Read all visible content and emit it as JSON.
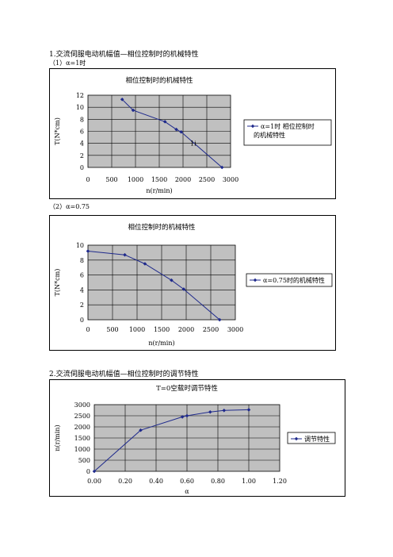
{
  "headings": {
    "section1": "1.交流伺服电动机幅值—相位控制时的机械特性",
    "sub1": "（1）α=1时",
    "sub2": "（2）α=0.75",
    "section2": "2.交流伺服电动机幅值—相位控制时的调节特性"
  },
  "chart_data": [
    {
      "type": "line",
      "title": "相位控制时的机械特性",
      "xlabel": "n(r/min)",
      "ylabel": "T(N*cm)",
      "xticks": [
        "0",
        "500",
        "1000",
        "1500",
        "2000",
        "2500",
        "3000"
      ],
      "yticks": [
        "0",
        "2",
        "4",
        "6",
        "8",
        "10",
        "12"
      ],
      "xlim": [
        0,
        3000
      ],
      "ylim": [
        0,
        12
      ],
      "grid": true,
      "legend_position": "right",
      "color": "#1f2a8c",
      "plot_bg": "#c0c0c0",
      "annotation": "1i",
      "series": [
        {
          "name": "α=1时  相位控制时的机械特性",
          "x": [
            720,
            950,
            1620,
            1860,
            1960,
            2820
          ],
          "y": [
            11.3,
            9.5,
            7.6,
            6.3,
            5.9,
            0
          ]
        }
      ]
    },
    {
      "type": "line",
      "title": "相位控制时的机械特性",
      "xlabel": "n(r/min)",
      "ylabel": "T(N*cm)",
      "xticks": [
        "0",
        "500",
        "1000",
        "1500",
        "2000",
        "2500",
        "3000"
      ],
      "yticks": [
        "0",
        "2",
        "4",
        "6",
        "8",
        "10"
      ],
      "xlim": [
        0,
        3000
      ],
      "ylim": [
        0,
        10
      ],
      "grid": true,
      "legend_position": "right",
      "color": "#1f2a8c",
      "plot_bg": "#c0c0c0",
      "series": [
        {
          "name": "α=0.75时的机械特性",
          "x": [
            0,
            750,
            1160,
            1700,
            1950,
            2680
          ],
          "y": [
            9.2,
            8.7,
            7.5,
            5.3,
            4.1,
            0
          ]
        }
      ]
    },
    {
      "type": "line",
      "title": "T=0空载时调节特性",
      "xlabel": "α",
      "ylabel": "n(r/min)",
      "xticks": [
        "0.00",
        "0.20",
        "0.40",
        "0.60",
        "0.80",
        "1.00",
        "1.20"
      ],
      "yticks": [
        "0",
        "500",
        "1000",
        "1500",
        "2000",
        "2500",
        "3000"
      ],
      "xlim": [
        0,
        1.2
      ],
      "ylim": [
        0,
        3000
      ],
      "grid": true,
      "legend_position": "right",
      "color": "#1f2a8c",
      "plot_bg": "#c0c0c0",
      "series": [
        {
          "name": "调节特性",
          "x": [
            0,
            0.3,
            0.57,
            0.6,
            0.75,
            0.84,
            1.0
          ],
          "y": [
            0,
            1850,
            2450,
            2500,
            2670,
            2740,
            2770
          ]
        }
      ]
    }
  ]
}
